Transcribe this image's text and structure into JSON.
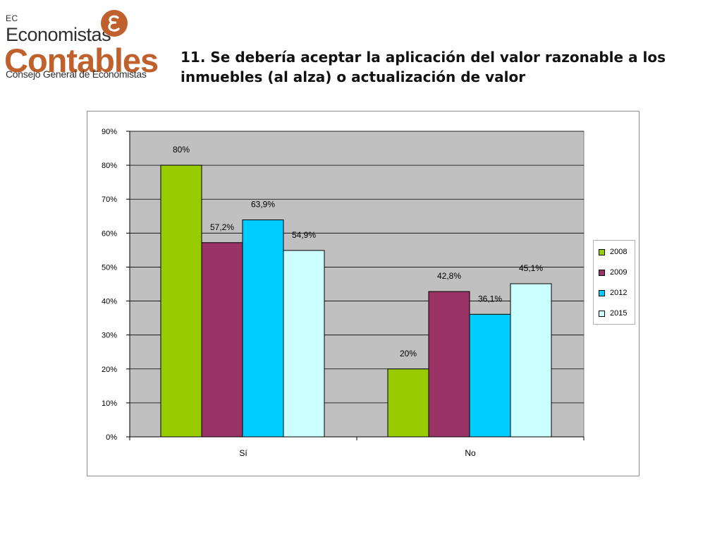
{
  "logo": {
    "ec": "EC",
    "economistas": "Economistas",
    "contables": "Contables",
    "consejo": "Consejo General de Economistas",
    "badge_icon": "stylized-e-icon",
    "brand_color": "#c0612d"
  },
  "slide": {
    "title": "11. Se debería aceptar la aplicación del valor razonable a los inmuebles (al alza) o actualización de valor"
  },
  "chart_data": {
    "type": "bar",
    "title": "",
    "xlabel": "",
    "ylabel": "",
    "categories": [
      "Sí",
      "No"
    ],
    "series": [
      {
        "name": "2008",
        "values": [
          80,
          20
        ],
        "labels": [
          "80%",
          "20%"
        ],
        "color": "#99cc00"
      },
      {
        "name": "2009",
        "values": [
          57.2,
          42.8
        ],
        "labels": [
          "57,2%",
          "42,8%"
        ],
        "color": "#993366"
      },
      {
        "name": "2012",
        "values": [
          63.9,
          36.1
        ],
        "labels": [
          "63,9%",
          "36,1%"
        ],
        "color": "#00ccff"
      },
      {
        "name": "2015",
        "values": [
          54.9,
          45.1
        ],
        "labels": [
          "54,9%",
          "45,1%"
        ],
        "color": "#ccffff"
      }
    ],
    "yticks": [
      "0%",
      "10%",
      "20%",
      "30%",
      "40%",
      "50%",
      "60%",
      "70%",
      "80%",
      "90%"
    ],
    "ylim": [
      0,
      90
    ],
    "grid": true,
    "plot_background": "#c0c0c0",
    "legend_position": "right"
  }
}
